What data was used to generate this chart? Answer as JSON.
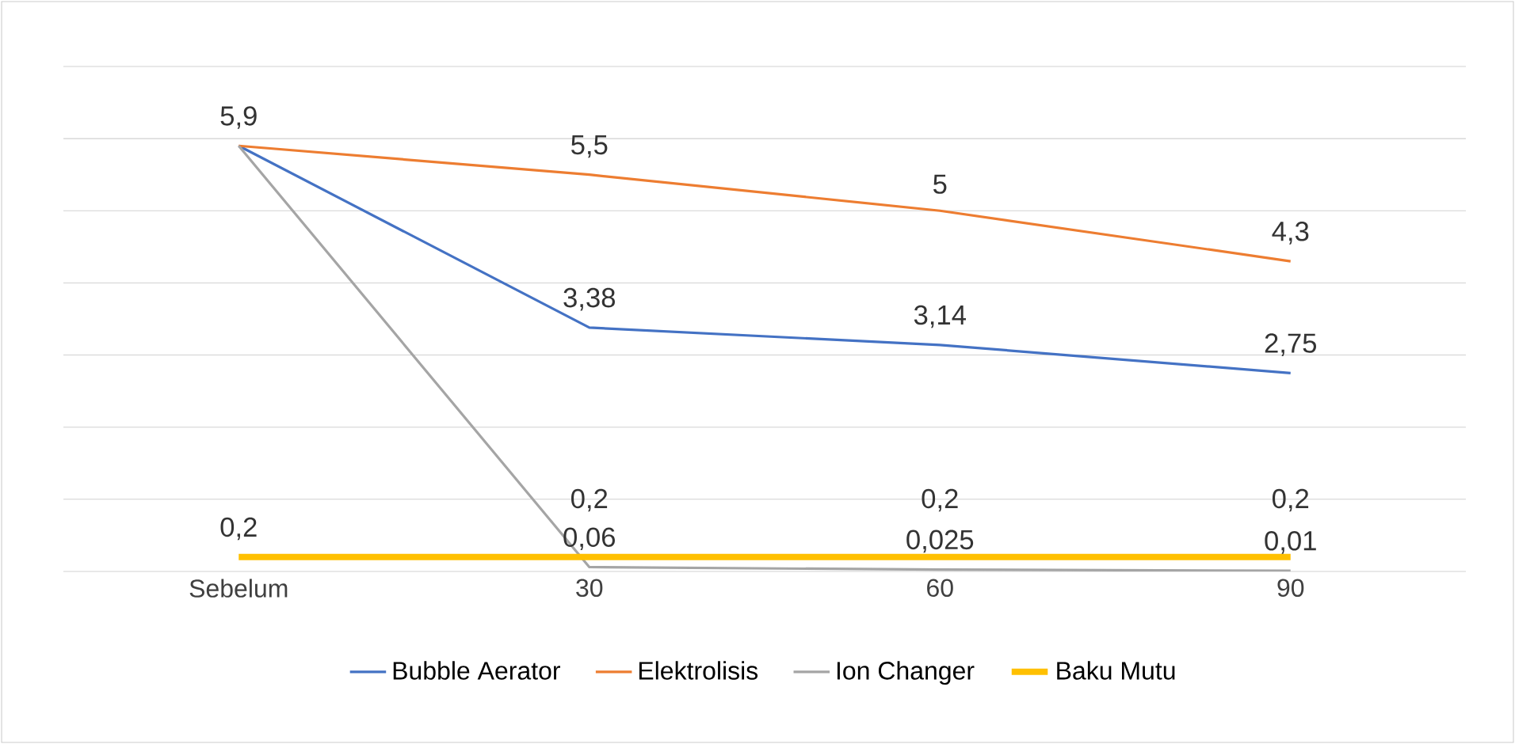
{
  "chart_data": {
    "type": "line",
    "categories": [
      "Sebelum",
      "30",
      "60",
      "90"
    ],
    "ylim": [
      0,
      7
    ],
    "yticks": [
      {
        "value": 0,
        "label": null
      },
      {
        "value": 1,
        "label": null
      },
      {
        "value": 2,
        "label": null
      },
      {
        "value": 3,
        "label": null
      },
      {
        "value": 4,
        "label": null
      },
      {
        "value": 5,
        "label": null
      },
      {
        "value": 6,
        "label": null
      },
      {
        "value": 7,
        "label": null
      }
    ],
    "tick_labels": "x",
    "grid": "y",
    "legend": "bottom",
    "series": [
      {
        "name": "Bubble Aerator",
        "color": "#4472c4",
        "values": [
          5.9,
          3.38,
          3.14,
          2.75
        ],
        "value_labels": [
          null,
          "3,38",
          "3,14",
          "2,75"
        ]
      },
      {
        "name": "Elektrolisis",
        "color": "#ed7d31",
        "values": [
          5.9,
          5.5,
          5,
          4.3
        ],
        "value_labels": [
          "5,9",
          "5,5",
          "5",
          "4,3"
        ]
      },
      {
        "name": "Ion Changer",
        "color": "#a5a5a5",
        "values": [
          5.9,
          0.06,
          0.025,
          0.01
        ],
        "value_labels": [
          null,
          "0,06",
          "0,025",
          "0,01"
        ]
      },
      {
        "name": "Baku Mutu",
        "color": "#ffc000",
        "values": [
          0.2,
          0.2,
          0.2,
          0.2
        ],
        "value_labels": [
          "0,2",
          "0,2",
          "0,2",
          "0,2"
        ]
      }
    ]
  }
}
